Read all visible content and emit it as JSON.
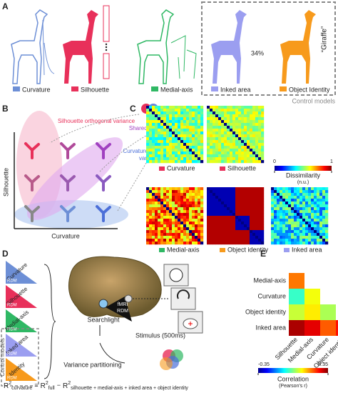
{
  "panel_a": {
    "label": "A",
    "models": [
      "Curvature",
      "Silhouette",
      "Medial-axis",
      "Inked area",
      "Object Identity"
    ],
    "inked_percent": "34%",
    "identity_quote": "“Giraffe”",
    "group_label": "Control models"
  },
  "panel_b": {
    "label": "B",
    "silhouette_note": "Silhouette orthogonal variance",
    "shared_note": "Shared variance",
    "curvature_note": [
      "Curvature orthogonal",
      "variance"
    ],
    "y_axis": "Silhouette",
    "x_axis": "Curvature"
  },
  "panel_c": {
    "label": "C",
    "colorbar": {
      "ticks": [
        0,
        1
      ],
      "title": "Dissimilarity",
      "unit": "(n.u.)"
    },
    "matrices": [
      "Curvature",
      "Silhouette",
      "Medial-axis",
      "Object identity",
      "Inked area"
    ]
  },
  "panel_d": {
    "label": "D",
    "rdm_models": [
      "Curvature",
      "Silhouette",
      "Medial-axis",
      "Inked area",
      "Identity"
    ],
    "rdm_tag": "RDM",
    "group_label": "Control models",
    "fmri": [
      "fMRI",
      "RDM"
    ],
    "searchlight": "Searchlight",
    "stimulus": "Stimulus (500ms)",
    "partitioning": "Variance partitioning",
    "equation": {
      "symbol": "R",
      "power": "2",
      "lhs_sub": "curvature",
      "equals": "=",
      "full_sub": "full",
      "minus": "−",
      "reduced_sub": "silhouette + medial-axis + inked area + object identity"
    }
  },
  "panel_e": {
    "label": "E",
    "rows": [
      "Medial-axis",
      "Curvature",
      "Object identity",
      "Inked area"
    ],
    "columns": [
      "Silhouette",
      "Medial-axis",
      "Curvature",
      "Object identity"
    ],
    "values": [
      [
        0.18,
        null,
        null,
        null
      ],
      [
        -0.05,
        0.08,
        null,
        null
      ],
      [
        0.05,
        0.1,
        0.03,
        null
      ],
      [
        0.32,
        0.28,
        0.2,
        0.25
      ]
    ],
    "colorbar": {
      "lim": [
        -0.35,
        0.35
      ],
      "ticks": [
        -0.35,
        0.35
      ],
      "title": "Correlation",
      "unit": "(Pearson's r)"
    }
  }
}
